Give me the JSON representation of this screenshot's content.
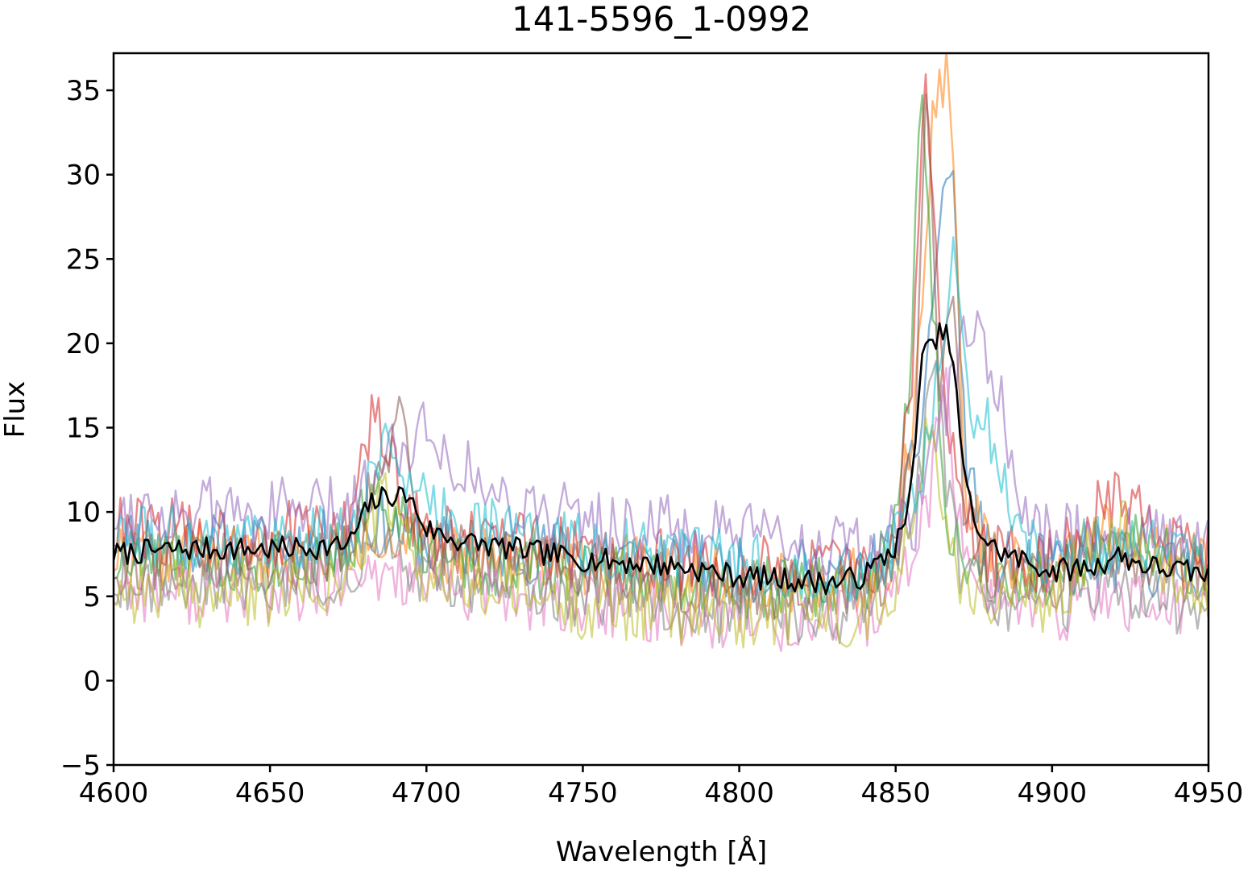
{
  "chart_data": {
    "type": "line",
    "title": "141-5596_1-0992",
    "xlabel": "Wavelength [Å]",
    "ylabel": "Flux",
    "xlim": [
      4600,
      4950
    ],
    "ylim": [
      -5,
      37.2
    ],
    "xticks": [
      4600,
      4650,
      4700,
      4750,
      4800,
      4850,
      4900,
      4950
    ],
    "yticks": [
      -5,
      0,
      5,
      10,
      15,
      20,
      25,
      30,
      35
    ],
    "grid": false,
    "legend": "none",
    "series_opacity": 0.55,
    "series": [
      {
        "color": "#1f77b4",
        "x": [
          4600,
          4650,
          4675,
          4686,
          4700,
          4750,
          4800,
          4840,
          4850,
          4858,
          4864,
          4868,
          4872,
          4880,
          4900,
          4920,
          4950
        ],
        "y": [
          8.5,
          8.0,
          8.3,
          9.5,
          8.0,
          7.5,
          6.5,
          6.5,
          8.0,
          15.0,
          27.0,
          31.5,
          14.0,
          7.0,
          6.8,
          7.0,
          6.5
        ],
        "noise": 1.2,
        "seed": 11
      },
      {
        "color": "#ff7f0e",
        "x": [
          4600,
          4650,
          4675,
          4686,
          4700,
          4750,
          4800,
          4840,
          4850,
          4858,
          4862,
          4866,
          4869,
          4872,
          4880,
          4900,
          4920,
          4950
        ],
        "y": [
          7.5,
          7.5,
          7.8,
          9.0,
          7.5,
          7.0,
          6.0,
          6.0,
          7.5,
          20.0,
          34.0,
          36.2,
          30.0,
          12.0,
          7.0,
          6.5,
          9.0,
          6.5
        ],
        "noise": 1.2,
        "seed": 22
      },
      {
        "color": "#2ca02c",
        "x": [
          4600,
          4650,
          4675,
          4684,
          4700,
          4750,
          4800,
          4840,
          4848,
          4854,
          4858,
          4862,
          4866,
          4872,
          4880,
          4900,
          4920,
          4950
        ],
        "y": [
          7.0,
          7.0,
          7.5,
          12.0,
          7.0,
          6.5,
          5.5,
          5.5,
          8.0,
          16.0,
          35.0,
          22.0,
          10.0,
          7.0,
          6.5,
          6.0,
          8.5,
          6.0
        ],
        "noise": 1.2,
        "seed": 33
      },
      {
        "color": "#d62728",
        "x": [
          4600,
          4650,
          4675,
          4683,
          4690,
          4700,
          4750,
          4800,
          4840,
          4850,
          4856,
          4859,
          4862,
          4866,
          4872,
          4880,
          4900,
          4920,
          4950
        ],
        "y": [
          9.0,
          8.5,
          9.0,
          16.0,
          12.0,
          8.5,
          7.5,
          6.5,
          6.5,
          8.0,
          20.0,
          37.2,
          28.0,
          15.0,
          10.0,
          7.5,
          7.0,
          11.0,
          7.0
        ],
        "noise": 1.3,
        "seed": 44
      },
      {
        "color": "#9467bd",
        "x": [
          4600,
          4650,
          4675,
          4690,
          4700,
          4720,
          4750,
          4800,
          4840,
          4855,
          4862,
          4868,
          4872,
          4878,
          4882,
          4890,
          4900,
          4920,
          4950
        ],
        "y": [
          10.0,
          10.0,
          10.0,
          14.0,
          15.0,
          11.0,
          9.5,
          8.5,
          7.5,
          9.0,
          13.0,
          18.0,
          20.5,
          20.0,
          18.0,
          9.0,
          8.5,
          9.0,
          8.0
        ],
        "noise": 1.3,
        "seed": 55
      },
      {
        "color": "#8c564b",
        "x": [
          4600,
          4650,
          4675,
          4692,
          4700,
          4750,
          4800,
          4840,
          4850,
          4856,
          4860,
          4864,
          4868,
          4872,
          4880,
          4900,
          4920,
          4950
        ],
        "y": [
          7.0,
          7.0,
          7.5,
          15.5,
          8.0,
          6.5,
          5.5,
          5.5,
          7.0,
          14.0,
          36.0,
          18.0,
          24.5,
          10.0,
          6.5,
          6.0,
          8.0,
          6.0
        ],
        "noise": 1.2,
        "seed": 66
      },
      {
        "color": "#e377c2",
        "x": [
          4600,
          4650,
          4675,
          4690,
          4700,
          4750,
          4800,
          4840,
          4850,
          4860,
          4866,
          4870,
          4880,
          4900,
          4920,
          4950
        ],
        "y": [
          5.5,
          5.0,
          5.5,
          6.5,
          5.5,
          4.5,
          3.5,
          3.5,
          5.0,
          10.0,
          18.0,
          9.0,
          5.0,
          4.0,
          5.0,
          4.0
        ],
        "noise": 1.2,
        "seed": 77
      },
      {
        "color": "#7f7f7f",
        "x": [
          4600,
          4650,
          4675,
          4690,
          4700,
          4750,
          4800,
          4840,
          4850,
          4858,
          4862,
          4866,
          4870,
          4880,
          4900,
          4920,
          4950
        ],
        "y": [
          6.0,
          6.0,
          6.5,
          7.5,
          6.0,
          5.0,
          4.0,
          4.0,
          6.0,
          12.0,
          20.0,
          12.0,
          7.0,
          5.0,
          4.5,
          5.0,
          4.5
        ],
        "noise": 1.2,
        "seed": 88
      },
      {
        "color": "#bcbd22",
        "x": [
          4600,
          4650,
          4675,
          4686,
          4700,
          4750,
          4800,
          4840,
          4850,
          4857,
          4861,
          4865,
          4870,
          4880,
          4900,
          4920,
          4950
        ],
        "y": [
          5.5,
          5.0,
          6.0,
          11.0,
          6.0,
          4.5,
          4.0,
          4.0,
          6.0,
          10.0,
          16.0,
          11.0,
          6.0,
          5.0,
          4.5,
          10.0,
          4.5
        ],
        "noise": 1.3,
        "seed": 99
      },
      {
        "color": "#17becf",
        "x": [
          4600,
          4650,
          4675,
          4688,
          4700,
          4750,
          4800,
          4840,
          4850,
          4858,
          4864,
          4868,
          4874,
          4880,
          4890,
          4900,
          4920,
          4950
        ],
        "y": [
          8.5,
          8.5,
          8.5,
          14.5,
          10.0,
          8.0,
          7.0,
          6.5,
          8.0,
          12.0,
          18.0,
          25.0,
          16.0,
          15.0,
          8.0,
          7.5,
          8.0,
          7.0
        ],
        "noise": 1.2,
        "seed": 111
      },
      {
        "color": "#000000",
        "opacity": 1,
        "x": [
          4600,
          4620,
          4650,
          4675,
          4682,
          4688,
          4694,
          4700,
          4710,
          4750,
          4780,
          4800,
          4830,
          4840,
          4850,
          4854,
          4856,
          4858,
          4860,
          4863,
          4865,
          4868,
          4872,
          4875,
          4880,
          4885,
          4900,
          4915,
          4920,
          4930,
          4950
        ],
        "y": [
          7.5,
          7.8,
          7.8,
          8.0,
          10.5,
          11.0,
          11.0,
          9.0,
          8.3,
          7.2,
          6.8,
          6.2,
          5.8,
          6.2,
          8.0,
          10.0,
          13.0,
          19.5,
          19.5,
          20.0,
          21.0,
          19.5,
          12.0,
          9.5,
          8.0,
          7.5,
          6.5,
          6.8,
          7.5,
          6.8,
          6.3
        ],
        "noise": 0.45,
        "seed": 7
      }
    ]
  }
}
